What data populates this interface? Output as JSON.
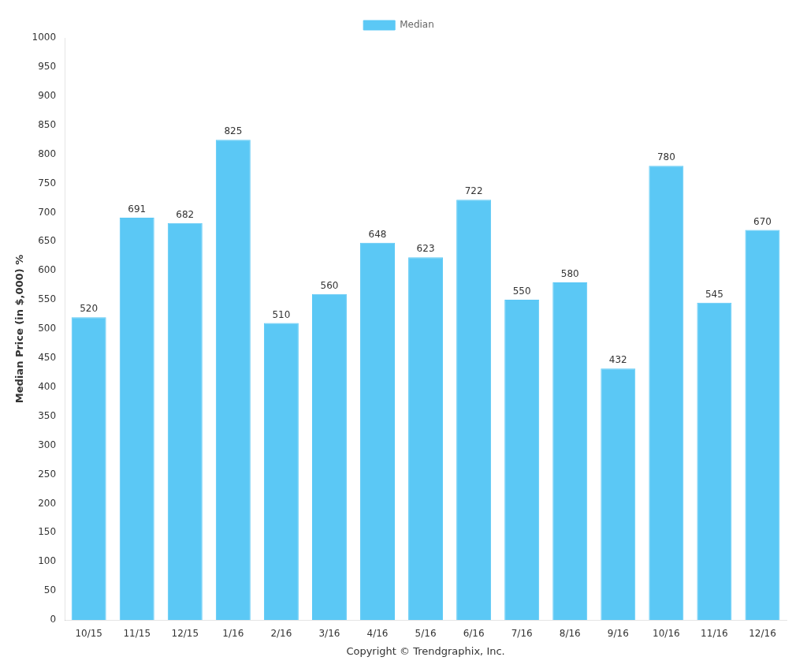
{
  "chart_data": {
    "type": "bar",
    "categories": [
      "10/15",
      "11/15",
      "12/15",
      "1/16",
      "2/16",
      "3/16",
      "4/16",
      "5/16",
      "6/16",
      "7/16",
      "8/16",
      "9/16",
      "10/16",
      "11/16",
      "12/16"
    ],
    "series": [
      {
        "name": "Median",
        "color": "#5BC8F5",
        "values": [
          520,
          691,
          682,
          825,
          510,
          560,
          648,
          623,
          722,
          550,
          580,
          432,
          780,
          545,
          670
        ]
      }
    ],
    "xlabel": "Copyright © Trendgraphix, Inc.",
    "ylabel": "Median Price (in $,000) %",
    "ylim": [
      0,
      1000
    ],
    "yticks": [
      0,
      50,
      100,
      150,
      200,
      250,
      300,
      350,
      400,
      450,
      500,
      550,
      600,
      650,
      700,
      750,
      800,
      850,
      900,
      950,
      1000
    ],
    "grid": false,
    "legend": "top",
    "data_labels": true
  }
}
